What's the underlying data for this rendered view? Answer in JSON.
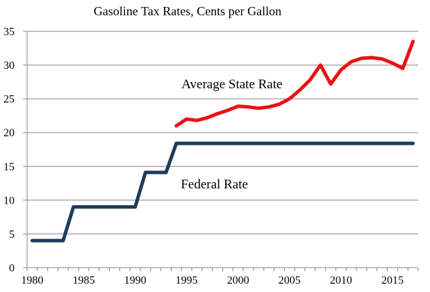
{
  "title": "Gasoline Tax Rates, Cents per Gallon",
  "chart_data": {
    "type": "line",
    "title": "Gasoline Tax Rates, Cents per Gallon",
    "xlabel": "",
    "ylabel": "",
    "xlim": [
      1979.5,
      2017.5
    ],
    "ylim": [
      0,
      35
    ],
    "y_ticks": [
      0,
      5,
      10,
      15,
      20,
      25,
      30,
      35
    ],
    "x_tick_years": [
      1980,
      1985,
      1990,
      1995,
      2000,
      2005,
      2010,
      2015
    ],
    "minor_x_ticks_every_year": true,
    "grid": "horizontal",
    "legend_position": "none",
    "axis_color": "#858585",
    "series": [
      {
        "name": "Federal Rate",
        "color": "#1f3a5e",
        "x": [
          1980,
          1981,
          1982,
          1983,
          1984,
          1985,
          1986,
          1987,
          1988,
          1989,
          1990,
          1991,
          1992,
          1993,
          1994,
          1995,
          1996,
          1997,
          1998,
          1999,
          2000,
          2001,
          2002,
          2003,
          2004,
          2005,
          2006,
          2007,
          2008,
          2009,
          2010,
          2011,
          2012,
          2013,
          2014,
          2015,
          2016,
          2017
        ],
        "values": [
          4,
          4,
          4,
          4,
          9,
          9,
          9,
          9,
          9,
          9,
          9,
          14.1,
          14.1,
          14.1,
          18.4,
          18.4,
          18.4,
          18.4,
          18.4,
          18.4,
          18.4,
          18.4,
          18.4,
          18.4,
          18.4,
          18.4,
          18.4,
          18.4,
          18.4,
          18.4,
          18.4,
          18.4,
          18.4,
          18.4,
          18.4,
          18.4,
          18.4,
          18.4
        ]
      },
      {
        "name": "Average State Rate",
        "color": "#ec1111",
        "x": [
          1994,
          1995,
          1996,
          1997,
          1998,
          1999,
          2000,
          2001,
          2002,
          2003,
          2004,
          2005,
          2006,
          2007,
          2008,
          2009,
          2010,
          2011,
          2012,
          2013,
          2014,
          2015,
          2016,
          2017
        ],
        "values": [
          21.0,
          22.0,
          21.8,
          22.2,
          22.8,
          23.3,
          23.9,
          23.8,
          23.6,
          23.8,
          24.2,
          25.0,
          26.3,
          27.8,
          30.0,
          27.2,
          29.3,
          30.5,
          31.0,
          31.1,
          30.9,
          30.3,
          29.5,
          33.5
        ]
      }
    ],
    "annotations": [
      {
        "text": "Average State Rate",
        "x": 1999.4,
        "y": 27.1
      },
      {
        "text": "Federal Rate",
        "x": 1997.7,
        "y": 12.2
      }
    ]
  }
}
